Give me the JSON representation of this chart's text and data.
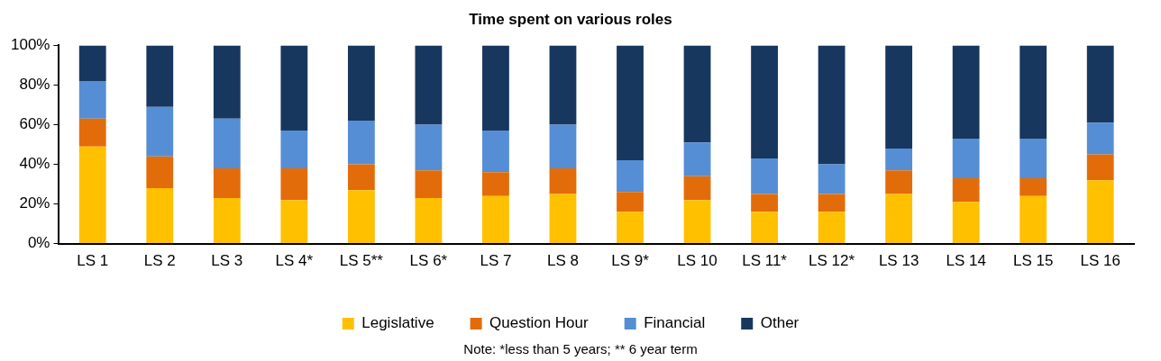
{
  "chart_data": {
    "type": "bar",
    "title": "Time spent on various roles",
    "categories": [
      "LS 1",
      "LS 2",
      "LS 3",
      "LS 4*",
      "LS 5**",
      "LS 6*",
      "LS 7",
      "LS 8",
      "LS 9*",
      "LS 10",
      "LS 11*",
      "LS 12*",
      "LS 13",
      "LS 14",
      "LS 15",
      "LS 16"
    ],
    "series": [
      {
        "name": "Legislative",
        "color": "#ffc000",
        "values": [
          49,
          28,
          23,
          22,
          27,
          23,
          24,
          25,
          16,
          22,
          16,
          16,
          25,
          21,
          24,
          32
        ]
      },
      {
        "name": "Question Hour",
        "color": "#e36c0a",
        "values": [
          14,
          16,
          15,
          16,
          13,
          14,
          12,
          13,
          10,
          12,
          9,
          9,
          12,
          12,
          9,
          13
        ]
      },
      {
        "name": "Financial",
        "color": "#558ed5",
        "values": [
          19,
          25,
          25,
          19,
          22,
          23,
          21,
          22,
          16,
          17,
          18,
          15,
          11,
          20,
          20,
          16
        ]
      },
      {
        "name": "Other",
        "color": "#17375e",
        "values": [
          18,
          31,
          37,
          43,
          38,
          40,
          43,
          40,
          58,
          49,
          57,
          60,
          52,
          47,
          47,
          39
        ]
      }
    ],
    "stacked": true,
    "ylim": [
      0,
      100
    ],
    "yticks": [
      {
        "value": 0,
        "label": "0%"
      },
      {
        "value": 20,
        "label": "20%"
      },
      {
        "value": 40,
        "label": "40%"
      },
      {
        "value": 60,
        "label": "60%"
      },
      {
        "value": 80,
        "label": "80%"
      },
      {
        "value": 100,
        "label": "100%"
      }
    ],
    "grid": false,
    "legend": "bottom",
    "annotations": [
      "Note: *less than 5 years; ** 6 year term"
    ]
  }
}
